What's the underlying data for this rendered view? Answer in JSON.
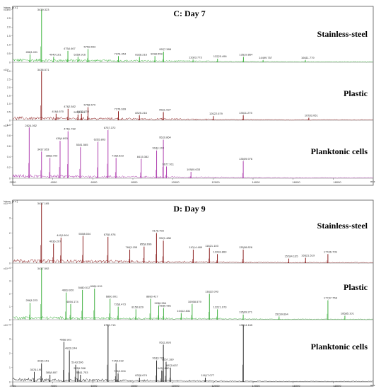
{
  "chart_data": [
    {
      "type": "line",
      "title": "C: Day 7",
      "y_axis_label": "Intens. [a.u.]",
      "x_axis_unit": "m/z",
      "xlim": [
        2000,
        20000
      ],
      "x_ticks": [
        "2000",
        "4000",
        "6000",
        "8000",
        "10000",
        "12000",
        "14000",
        "16000",
        "18000"
      ],
      "grid": false,
      "series": [
        {
          "name": "Stainless-steel",
          "color": "#3cb43c",
          "y_scale_label": "x10⁴",
          "y_ticks": [
            "0",
            "0.5",
            "1.0",
            "1.5",
            "2.0",
            "2.5",
            "3.0"
          ],
          "ylim": [
            0,
            3.1
          ],
          "peaks": [
            {
              "x": 2863.491,
              "y": 0.45,
              "label": "2863.491"
            },
            {
              "x": 3439.323,
              "y": 3.0,
              "label": "3439.323"
            },
            {
              "x": 4040.161,
              "y": 0.3,
              "label": "4040.161"
            },
            {
              "x": 4754.467,
              "y": 0.65,
              "label": "4754.467"
            },
            {
              "x": 5259.916,
              "y": 0.3,
              "label": "5259.916"
            },
            {
              "x": 5759.653,
              "y": 0.75,
              "label": "5759.653"
            },
            {
              "x": 7276.354,
              "y": 0.35,
              "label": "7276.354"
            },
            {
              "x": 8328.216,
              "y": 0.3,
              "label": "8328.216"
            },
            {
              "x": 9099.559,
              "y": 0.35,
              "label": "9099.559"
            },
            {
              "x": 9527.388,
              "y": 0.6,
              "label": "9527.388"
            },
            {
              "x": 11003.773,
              "y": 0.15,
              "label": "11003.773"
            },
            {
              "x": 12225.496,
              "y": 0.2,
              "label": "12225.496"
            },
            {
              "x": 13519.864,
              "y": 0.3,
              "label": "13519.864"
            },
            {
              "x": 14499.757,
              "y": 0.12,
              "label": "14499.757"
            },
            {
              "x": 16611.779,
              "y": 0.12,
              "label": "16611.779"
            }
          ]
        },
        {
          "name": "Plastic",
          "color": "#8b1a1a",
          "y_scale_label": "x10⁴",
          "y_ticks": [
            "0",
            "0.5",
            "1.0",
            "1.5",
            "2.0",
            "2.5",
            "3.0"
          ],
          "ylim": [
            0,
            3.2
          ],
          "peaks": [
            {
              "x": 3438.571,
              "y": 3.0,
              "label": "3438.571"
            },
            {
              "x": 4164.67,
              "y": 0.4,
              "label": "4164.670"
            },
            {
              "x": 4762.582,
              "y": 0.7,
              "label": "4762.582"
            },
            {
              "x": 5432.238,
              "y": 0.4,
              "label": "5432.238"
            },
            {
              "x": 5259.511,
              "y": 0.35,
              "label": "5259.511"
            },
            {
              "x": 5758.57,
              "y": 0.8,
              "label": "5758.570"
            },
            {
              "x": 7276.699,
              "y": 0.55,
              "label": "7276.699"
            },
            {
              "x": 8325.216,
              "y": 0.3,
              "label": "8325.216"
            },
            {
              "x": 9521.937,
              "y": 0.5,
              "label": "9521.937"
            },
            {
              "x": 12022.679,
              "y": 0.25,
              "label": "12022.679"
            },
            {
              "x": 13511.275,
              "y": 0.3,
              "label": "13511.275"
            },
            {
              "x": 16783.061,
              "y": 0.15,
              "label": "16783.061"
            }
          ]
        },
        {
          "name": "Planktonic cells",
          "color": "#b040b0",
          "y_scale_label": "x10⁴",
          "y_ticks": [
            "0",
            "0.2",
            "0.4",
            "0.6",
            "0.8",
            "1.0"
          ],
          "ylim": [
            0,
            1.02
          ],
          "peaks": [
            {
              "x": 2824.052,
              "y": 0.95,
              "label": "2824.052"
            },
            {
              "x": 3437.653,
              "y": 0.5,
              "label": "3437.653"
            },
            {
              "x": 3858.709,
              "y": 0.38,
              "label": "3858.709"
            },
            {
              "x": 4364.893,
              "y": 0.7,
              "label": "4364.893"
            },
            {
              "x": 4761.782,
              "y": 0.88,
              "label": "4761.782"
            },
            {
              "x": 5381.565,
              "y": 0.58,
              "label": "5381.565"
            },
            {
              "x": 6255.803,
              "y": 0.68,
              "label": "6255.803"
            },
            {
              "x": 6757.372,
              "y": 0.9,
              "label": "6757.372"
            },
            {
              "x": 7159.523,
              "y": 0.38,
              "label": "7159.523"
            },
            {
              "x": 8415.382,
              "y": 0.36,
              "label": "8415.382"
            },
            {
              "x": 9184.103,
              "y": 0.52,
              "label": "9184.103"
            },
            {
              "x": 9520.864,
              "y": 0.72,
              "label": "9520.864"
            },
            {
              "x": 9677.911,
              "y": 0.22,
              "label": "9677.911"
            },
            {
              "x": 10900.633,
              "y": 0.12,
              "label": "10900.633"
            },
            {
              "x": 13509.976,
              "y": 0.32,
              "label": "13509.976"
            }
          ]
        }
      ]
    },
    {
      "type": "line",
      "title": "D: Day 9",
      "y_axis_label": "Intens. [a.u.]",
      "x_axis_unit": "m/z",
      "xlim": [
        2000,
        20000
      ],
      "x_ticks": [
        "2000",
        "4000",
        "6000",
        "8000",
        "10000",
        "12000",
        "14000",
        "16000",
        "18000"
      ],
      "grid": false,
      "series": [
        {
          "name": "Stainless-steel",
          "color": "#8b2020",
          "y_scale_label": "x10⁴",
          "y_ticks": [
            "0",
            "1",
            "2",
            "3",
            "4"
          ],
          "ylim": [
            0,
            4.1
          ],
          "peaks": [
            {
              "x": 3437.165,
              "y": 4.0,
              "label": "3437.165"
            },
            {
              "x": 4036.207,
              "y": 1.3,
              "label": "4036.207"
            },
            {
              "x": 4410.604,
              "y": 1.7,
              "label": "4410.604"
            },
            {
              "x": 5508.654,
              "y": 1.8,
              "label": "5508.654"
            },
            {
              "x": 6755.978,
              "y": 1.75,
              "label": "6755.978"
            },
            {
              "x": 7843.155,
              "y": 0.9,
              "label": "7843.155"
            },
            {
              "x": 8558.696,
              "y": 1.1,
              "label": "8558.696"
            },
            {
              "x": 9178.402,
              "y": 2.0,
              "label": "9178.402"
            },
            {
              "x": 9521.488,
              "y": 1.5,
              "label": "9521.488"
            },
            {
              "x": 11014.489,
              "y": 0.9,
              "label": "11014.489"
            },
            {
              "x": 11821.103,
              "y": 1.0,
              "label": "11821.103"
            },
            {
              "x": 12218.869,
              "y": 0.6,
              "label": "12218.869"
            },
            {
              "x": 13508.826,
              "y": 0.9,
              "label": "13508.826"
            },
            {
              "x": 15784.135,
              "y": 0.3,
              "label": "15784.135"
            },
            {
              "x": 16621.519,
              "y": 0.35,
              "label": "16621.519"
            },
            {
              "x": 17736.709,
              "y": 0.6,
              "label": "17736.709"
            }
          ]
        },
        {
          "name": "Plastic",
          "color": "#40b040",
          "y_scale_label": "x10⁴",
          "y_ticks": [
            "0",
            "1",
            "2",
            "3",
            "4"
          ],
          "ylim": [
            0,
            4.1
          ],
          "peaks": [
            {
              "x": 2863.223,
              "y": 1.3,
              "label": "2863.223"
            },
            {
              "x": 3437.592,
              "y": 4.0,
              "label": "3437.592"
            },
            {
              "x": 4669.92,
              "y": 2.1,
              "label": "4669.920"
            },
            {
              "x": 4894.174,
              "y": 1.2,
              "label": "4894.174"
            },
            {
              "x": 5480.512,
              "y": 2.3,
              "label": "5480.512"
            },
            {
              "x": 6084.919,
              "y": 2.4,
              "label": "6084.919"
            },
            {
              "x": 6860.001,
              "y": 1.6,
              "label": "6860.001"
            },
            {
              "x": 7266.473,
              "y": 1.0,
              "label": "7266.473"
            },
            {
              "x": 8150.829,
              "y": 0.8,
              "label": "8150.829"
            },
            {
              "x": 8880.417,
              "y": 1.6,
              "label": "8880.417"
            },
            {
              "x": 9288.554,
              "y": 1.1,
              "label": "9288.554"
            },
            {
              "x": 9530.981,
              "y": 0.9,
              "label": "9530.981"
            },
            {
              "x": 10412.831,
              "y": 0.5,
              "label": "10412.831"
            },
            {
              "x": 10958.579,
              "y": 1.2,
              "label": "10958.579"
            },
            {
              "x": 11822.093,
              "y": 2.0,
              "label": "11822.093"
            },
            {
              "x": 12221.973,
              "y": 0.8,
              "label": "12221.973"
            },
            {
              "x": 13509.271,
              "y": 0.4,
              "label": "13509.271"
            },
            {
              "x": 15299.664,
              "y": 0.25,
              "label": "15299.664"
            },
            {
              "x": 17737.758,
              "y": 1.5,
              "label": "17737.758"
            },
            {
              "x": 18585.101,
              "y": 0.3,
              "label": "18585.101"
            }
          ]
        },
        {
          "name": "Planktonic cells",
          "color": "#303030",
          "y_scale_label": "x10⁴",
          "y_ticks": [
            "0",
            "1",
            "2",
            "3",
            "4"
          ],
          "ylim": [
            0,
            4.1
          ],
          "peaks": [
            {
              "x": 3076.19,
              "y": 0.7,
              "label": "3076.190"
            },
            {
              "x": 3436.151,
              "y": 1.3,
              "label": "3436.151"
            },
            {
              "x": 3858.807,
              "y": 0.5,
              "label": "3858.807"
            },
            {
              "x": 4556.921,
              "y": 2.8,
              "label": "4556.921"
            },
            {
              "x": 4829.244,
              "y": 2.2,
              "label": "4829.244"
            },
            {
              "x": 5143.596,
              "y": 1.2,
              "label": "5143.596"
            },
            {
              "x": 5381.753,
              "y": 0.5,
              "label": "5381.753"
            },
            {
              "x": 5259.358,
              "y": 0.8,
              "label": "5259.358"
            },
            {
              "x": 6759.713,
              "y": 4.0,
              "label": "6759.713"
            },
            {
              "x": 7159.232,
              "y": 1.3,
              "label": "7159.232"
            },
            {
              "x": 7262.004,
              "y": 0.6,
              "label": "7262.004"
            },
            {
              "x": 8328.674,
              "y": 0.3,
              "label": "8328.674"
            },
            {
              "x": 9183.723,
              "y": 1.5,
              "label": "9183.723"
            },
            {
              "x": 9521.893,
              "y": 2.6,
              "label": "9521.893"
            },
            {
              "x": 9657.18,
              "y": 1.4,
              "label": "9657.180"
            },
            {
              "x": 9439.88,
              "y": 0.8,
              "label": "9439.880"
            },
            {
              "x": 9875.637,
              "y": 1.0,
              "label": "9875.637"
            },
            {
              "x": 11617.077,
              "y": 0.3,
              "label": "11617.077"
            },
            {
              "x": 13514.165,
              "y": 4.0,
              "label": "13514.165"
            }
          ]
        }
      ]
    }
  ]
}
